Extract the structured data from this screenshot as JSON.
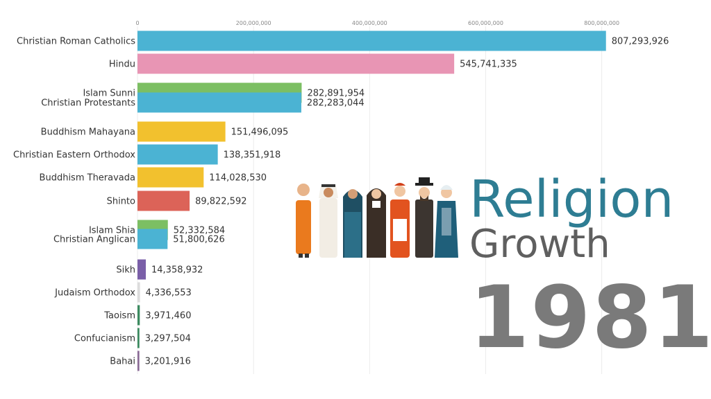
{
  "title": {
    "line1": "Religion",
    "line2": "Growth",
    "year": "1981"
  },
  "colors": {
    "title_line1": "#2e7d93",
    "title_line2": "#5f5f5f",
    "year": "#7a7a7a"
  },
  "illustration": "people-of-different-religions-illustration",
  "chart_data": {
    "type": "bar",
    "orientation": "horizontal",
    "x_ticks": [
      "0",
      "200,000,000",
      "400,000,000",
      "600,000,000",
      "800,000,000"
    ],
    "xlim": [
      0,
      810000000
    ],
    "grid": true,
    "bars": [
      {
        "label": "Christian Roman Catholics",
        "value": 807293926,
        "value_label": "807,293,926",
        "color": "#4bb3d3"
      },
      {
        "label": "Hindu",
        "value": 545741335,
        "value_label": "545,741,335",
        "color": "#e895b4"
      },
      {
        "label": "Islam Sunni",
        "value": 282891954,
        "value_label": "282,891,954",
        "color": "#7cbf63"
      },
      {
        "label": "Christian Protestants",
        "value": 282283044,
        "value_label": "282,283,044",
        "color": "#4bb3d3"
      },
      {
        "label": "Buddhism Mahayana",
        "value": 151496095,
        "value_label": "151,496,095",
        "color": "#f2c12e"
      },
      {
        "label": "Christian Eastern Orthodox",
        "value": 138351918,
        "value_label": "138,351,918",
        "color": "#4bb3d3"
      },
      {
        "label": "Buddhism Theravada",
        "value": 114028530,
        "value_label": "114,028,530",
        "color": "#f2c12e"
      },
      {
        "label": "Shinto",
        "value": 89822592,
        "value_label": "89,822,592",
        "color": "#dc6358"
      },
      {
        "label": "Islam Shia",
        "value": 52332584,
        "value_label": "52,332,584",
        "color": "#7cbf63"
      },
      {
        "label": "Christian Anglican",
        "value": 51800626,
        "value_label": "51,800,626",
        "color": "#4bb3d3"
      },
      {
        "label": "Sikh",
        "value": 14358932,
        "value_label": "14,358,932",
        "color": "#7a5fa8"
      },
      {
        "label": "Judaism Orthodox",
        "value": 4336553,
        "value_label": "4,336,553",
        "color": "#dcdcdc"
      },
      {
        "label": "Taoism",
        "value": 3971460,
        "value_label": "3,971,460",
        "color": "#3b8a5f"
      },
      {
        "label": "Confucianism",
        "value": 3297504,
        "value_label": "3,297,504",
        "color": "#3b8a5f"
      },
      {
        "label": "Bahai",
        "value": 3201916,
        "value_label": "3,201,916",
        "color": "#8a6a96"
      }
    ]
  }
}
